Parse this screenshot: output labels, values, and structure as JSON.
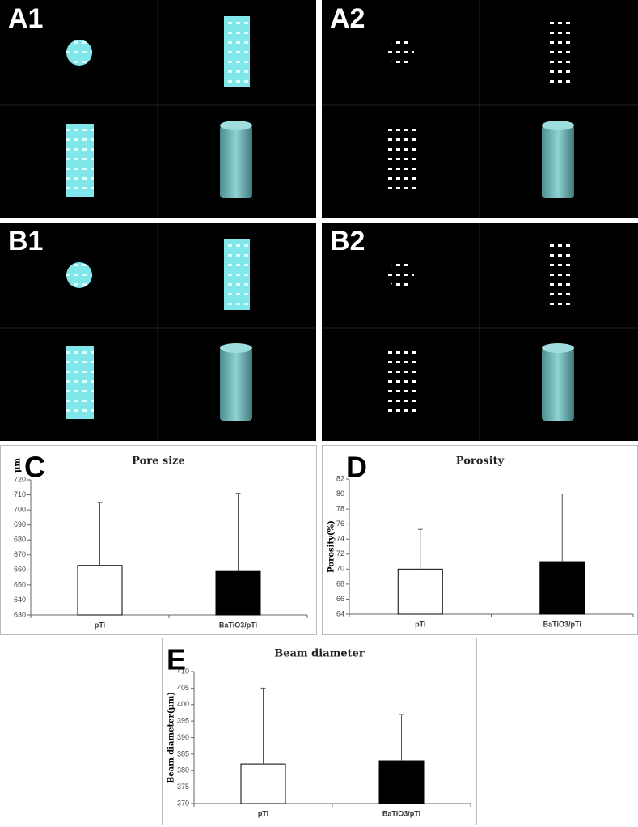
{
  "panels": [
    {
      "label": "A1"
    },
    {
      "label": "A2"
    },
    {
      "label": "B1"
    },
    {
      "label": "B2"
    }
  ],
  "chart_data": [
    {
      "type": "bar",
      "panel_label": "C",
      "title": "Pore size",
      "y_label": "μm",
      "categories": [
        "pTi",
        "BaTiO3/pTi"
      ],
      "values": [
        663,
        659
      ],
      "errors": [
        42,
        52
      ],
      "colors": [
        "#ffffff",
        "#000000"
      ],
      "ylim": [
        630,
        720
      ],
      "yticks": [
        630,
        640,
        650,
        660,
        670,
        680,
        690,
        700,
        710,
        720
      ]
    },
    {
      "type": "bar",
      "panel_label": "D",
      "title": "Porosity",
      "y_label": "Porosity(%)",
      "categories": [
        "pTi",
        "BaTiO3/pTi"
      ],
      "values": [
        70,
        71
      ],
      "errors": [
        5.3,
        9
      ],
      "colors": [
        "#ffffff",
        "#000000"
      ],
      "ylim": [
        64,
        82
      ],
      "yticks": [
        64,
        66,
        68,
        70,
        72,
        74,
        76,
        78,
        80,
        82
      ]
    },
    {
      "type": "bar",
      "panel_label": "E",
      "title": "Beam diameter",
      "y_label": "Beam diameter(μm)",
      "categories": [
        "pTi",
        "BaTiO3/pTi"
      ],
      "values": [
        382,
        383
      ],
      "errors": [
        23,
        14
      ],
      "colors": [
        "#ffffff",
        "#000000"
      ],
      "ylim": [
        370,
        410
      ],
      "yticks": [
        370,
        375,
        380,
        385,
        390,
        395,
        400,
        405,
        410
      ]
    }
  ]
}
